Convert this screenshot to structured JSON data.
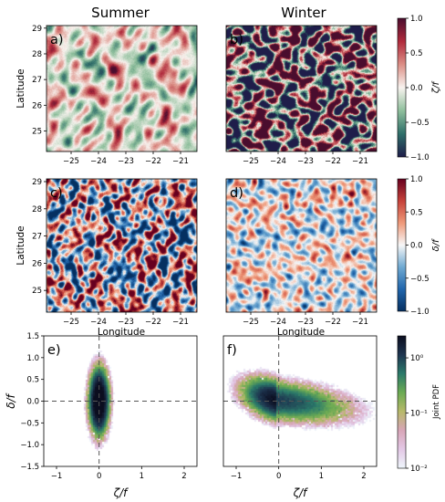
{
  "chart_data": [
    {
      "type": "heatmap",
      "panel": "a)",
      "title": "Summer",
      "ylabel": "Latitude",
      "xticks": [
        "−25",
        "−24",
        "−23",
        "−22",
        "−21"
      ],
      "yticks": [
        "25",
        "26",
        "27",
        "28",
        "29"
      ],
      "xlim": [
        -25.9,
        -20.4
      ],
      "ylim": [
        24.2,
        29.1
      ],
      "field": "vorticity",
      "rms_amplitude": 0.22
    },
    {
      "type": "heatmap",
      "panel": "b)",
      "title": "Winter",
      "xticks": [
        "−25",
        "−24",
        "−23",
        "−22",
        "−21"
      ],
      "xlim": [
        -25.9,
        -20.4
      ],
      "ylim": [
        24.2,
        29.1
      ],
      "field": "vorticity",
      "rms_amplitude": 0.75,
      "colorbar": {
        "label": "ζ/f",
        "range": [
          -1.0,
          1.0
        ],
        "ticks": [
          "1.0",
          "0.5",
          "0.0",
          "−0.5",
          "−1.0"
        ],
        "colors": [
          "#1f1d4a",
          "#2f6f6a",
          "#8fbf9c",
          "#f8f3ef",
          "#dc8f86",
          "#b02a3c",
          "#4a0d2e"
        ]
      }
    },
    {
      "type": "heatmap",
      "panel": "c)",
      "xlabel": "Longitude",
      "ylabel": "Latitude",
      "xticks": [
        "−25",
        "−24",
        "−23",
        "−22",
        "−21"
      ],
      "yticks": [
        "25",
        "26",
        "27",
        "28",
        "29"
      ],
      "xlim": [
        -25.9,
        -20.4
      ],
      "ylim": [
        24.2,
        29.1
      ],
      "field": "divergence",
      "rms_amplitude": 0.45
    },
    {
      "type": "heatmap",
      "panel": "d)",
      "xlabel": "Longitude",
      "xticks": [
        "−25",
        "−24",
        "−23",
        "−22",
        "−21"
      ],
      "xlim": [
        -25.9,
        -20.4
      ],
      "ylim": [
        24.2,
        29.1
      ],
      "field": "divergence",
      "rms_amplitude": 0.22,
      "colorbar": {
        "label": "δ/f",
        "range": [
          -1.0,
          1.0
        ],
        "ticks": [
          "1.0",
          "0.5",
          "0.0",
          "−0.5",
          "−1.0"
        ],
        "colors": [
          "#053061",
          "#2166ac",
          "#6fa9d2",
          "#f7f7f7",
          "#ef9a7a",
          "#c6423a",
          "#67001f"
        ]
      }
    },
    {
      "type": "heatmap",
      "panel": "e)",
      "xlabel": "ζ/f",
      "ylabel": "δ/f",
      "xlim": [
        -1.3,
        2.3
      ],
      "ylim": [
        -1.5,
        1.5
      ],
      "xticks": [
        "−1",
        "0",
        "1",
        "2"
      ],
      "yticks": [
        "1.5",
        "1.0",
        "0.5",
        "0.0",
        "−0.5",
        "−1.0",
        "−1.5"
      ],
      "distribution": {
        "center": [
          0.0,
          0.0
        ],
        "sigma_x": 0.1,
        "sigma_y": 0.32,
        "correlation": 0.0,
        "skew_x": 0.0
      },
      "reference_lines": {
        "x": 0,
        "y": 0
      }
    },
    {
      "type": "heatmap",
      "panel": "f)",
      "xlabel": "ζ/f",
      "xlim": [
        -1.3,
        2.3
      ],
      "ylim": [
        -1.5,
        1.5
      ],
      "xticks": [
        "−1",
        "0",
        "1",
        "2"
      ],
      "distribution": {
        "center": [
          -0.05,
          0.02
        ],
        "sigma_x": 0.38,
        "sigma_y": 0.22,
        "correlation": -0.4,
        "skew_x": 0.45
      },
      "reference_lines": {
        "x": 0,
        "y": 0
      },
      "colorbar": {
        "label": "Joint PDF",
        "scale": "log",
        "range": [
          0.01,
          2.5
        ],
        "ticks": [
          "10⁰",
          "10⁻¹",
          "10⁻²"
        ],
        "tick_values": [
          1,
          0.1,
          0.01
        ],
        "colors": [
          "#0b0d1f",
          "#1e3550",
          "#2b7a6a",
          "#6cab53",
          "#b7b96a",
          "#d8a6b8",
          "#e3c8e6",
          "#eef6fb"
        ]
      }
    }
  ]
}
